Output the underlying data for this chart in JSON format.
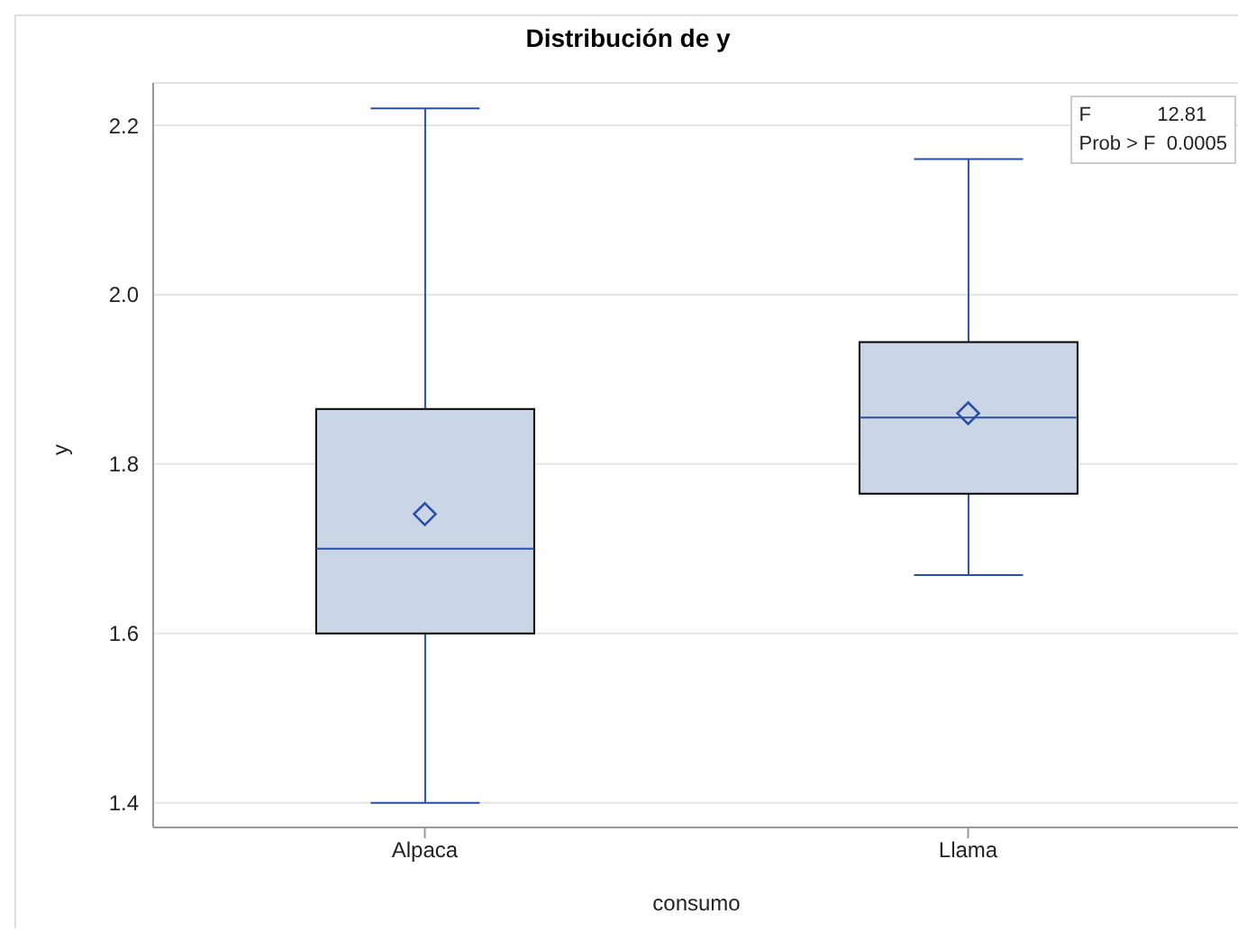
{
  "chart_data": {
    "type": "box",
    "title": "Distribución de y",
    "xlabel": "consumo",
    "ylabel": "y",
    "categories": [
      "Alpaca",
      "Llama"
    ],
    "series": [
      {
        "color": "#cad5e5",
        "boxes": [
          {
            "low": 1.4,
            "q1": 1.6,
            "median": 1.7,
            "q3": 1.865,
            "high": 2.22,
            "mean": 1.741
          },
          {
            "low": 1.669,
            "q1": 1.765,
            "median": 1.855,
            "q3": 1.944,
            "high": 2.16,
            "mean": 1.86
          }
        ]
      }
    ],
    "ylim": [
      1.371,
      2.25
    ],
    "yticks": [
      1.4,
      1.6,
      1.8,
      {
        "value": 2,
        "label": "2.0"
      },
      2.2
    ],
    "grid": "y",
    "annotations": [
      "F            12.81",
      "Prob > F  0.0005"
    ]
  }
}
